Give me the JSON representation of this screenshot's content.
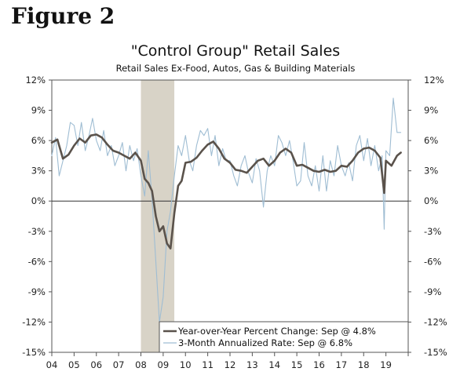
{
  "figure_label": "Figure 2",
  "chart_data": {
    "type": "line",
    "title": "\"Control Group\" Retail Sales",
    "subtitle": "Retail Sales Ex-Food, Autos, Gas & Building Materials",
    "ylim": [
      -15,
      12
    ],
    "y_ticks": [
      "12%",
      "9%",
      "6%",
      "3%",
      "0%",
      "-3%",
      "-6%",
      "-9%",
      "-12%",
      "-15%"
    ],
    "y_tick_values": [
      12,
      9,
      6,
      3,
      0,
      -3,
      -6,
      -9,
      -12,
      -15
    ],
    "xlim": [
      2004,
      2020
    ],
    "x_ticks": [
      "04",
      "05",
      "06",
      "07",
      "08",
      "09",
      "10",
      "11",
      "12",
      "13",
      "14",
      "15",
      "16",
      "17",
      "18",
      "19"
    ],
    "recession_shading": [
      2008.0,
      2009.5
    ],
    "legend_position": "bottom-right",
    "series": [
      {
        "name": "Year-over-Year Percent Change: Sep @ 4.8%",
        "color": "#5a524b",
        "style": "thick",
        "x": [
          2004.0,
          2004.25,
          2004.5,
          2004.75,
          2005.0,
          2005.25,
          2005.5,
          2005.75,
          2006.0,
          2006.25,
          2006.5,
          2006.75,
          2007.0,
          2007.25,
          2007.5,
          2007.75,
          2008.0,
          2008.17,
          2008.33,
          2008.5,
          2008.67,
          2008.83,
          2009.0,
          2009.17,
          2009.33,
          2009.5,
          2009.67,
          2009.83,
          2010.0,
          2010.25,
          2010.5,
          2010.75,
          2011.0,
          2011.25,
          2011.5,
          2011.75,
          2012.0,
          2012.25,
          2012.5,
          2012.75,
          2013.0,
          2013.25,
          2013.5,
          2013.75,
          2014.0,
          2014.25,
          2014.5,
          2014.75,
          2015.0,
          2015.25,
          2015.5,
          2015.75,
          2016.0,
          2016.25,
          2016.5,
          2016.75,
          2017.0,
          2017.25,
          2017.5,
          2017.75,
          2018.0,
          2018.25,
          2018.5,
          2018.75,
          2018.92,
          2019.0,
          2019.25,
          2019.5,
          2019.67
        ],
        "values": [
          5.8,
          6.1,
          4.2,
          4.6,
          5.5,
          6.2,
          5.8,
          6.5,
          6.6,
          6.3,
          5.6,
          5.0,
          4.8,
          4.5,
          4.2,
          4.8,
          4.0,
          2.2,
          1.8,
          1.0,
          -1.5,
          -3.0,
          -2.5,
          -4.2,
          -4.7,
          -1.2,
          1.5,
          2.0,
          3.8,
          3.9,
          4.3,
          5.0,
          5.6,
          5.9,
          5.2,
          4.2,
          3.8,
          3.1,
          3.0,
          2.8,
          3.4,
          4.0,
          4.2,
          3.5,
          4.0,
          4.8,
          5.2,
          4.8,
          3.5,
          3.6,
          3.3,
          3.0,
          2.9,
          3.1,
          2.9,
          3.0,
          3.5,
          3.4,
          4.0,
          4.8,
          5.2,
          5.3,
          5.0,
          4.3,
          0.8,
          4.0,
          3.5,
          4.5,
          4.8
        ]
      },
      {
        "name": "3-Month Annualized Rate: Sep @ 6.8%",
        "color": "#9fbdd3",
        "style": "thin",
        "x": [
          2004.0,
          2004.17,
          2004.33,
          2004.5,
          2004.67,
          2004.83,
          2005.0,
          2005.17,
          2005.33,
          2005.5,
          2005.67,
          2005.83,
          2006.0,
          2006.17,
          2006.33,
          2006.5,
          2006.67,
          2006.83,
          2007.0,
          2007.17,
          2007.33,
          2007.5,
          2007.67,
          2007.83,
          2008.0,
          2008.17,
          2008.33,
          2008.5,
          2008.67,
          2008.83,
          2009.0,
          2009.17,
          2009.33,
          2009.5,
          2009.67,
          2009.83,
          2010.0,
          2010.17,
          2010.33,
          2010.5,
          2010.67,
          2010.83,
          2011.0,
          2011.17,
          2011.33,
          2011.5,
          2011.67,
          2011.83,
          2012.0,
          2012.17,
          2012.33,
          2012.5,
          2012.67,
          2012.83,
          2013.0,
          2013.17,
          2013.33,
          2013.5,
          2013.67,
          2013.83,
          2014.0,
          2014.17,
          2014.33,
          2014.5,
          2014.67,
          2014.83,
          2015.0,
          2015.17,
          2015.33,
          2015.5,
          2015.67,
          2015.83,
          2016.0,
          2016.17,
          2016.33,
          2016.5,
          2016.67,
          2016.83,
          2017.0,
          2017.17,
          2017.33,
          2017.5,
          2017.67,
          2017.83,
          2018.0,
          2018.17,
          2018.33,
          2018.5,
          2018.67,
          2018.83,
          2018.92,
          2019.0,
          2019.17,
          2019.33,
          2019.5,
          2019.67
        ],
        "values": [
          4.5,
          6.3,
          2.5,
          4.0,
          5.5,
          7.8,
          7.5,
          5.5,
          7.8,
          5.0,
          6.5,
          8.2,
          6.0,
          5.0,
          7.0,
          4.5,
          5.5,
          3.5,
          4.5,
          5.8,
          3.0,
          5.5,
          4.0,
          5.2,
          2.5,
          0.5,
          5.0,
          0.2,
          -6.0,
          -12.0,
          -9.5,
          -3.0,
          -1.0,
          2.5,
          5.5,
          4.5,
          6.5,
          4.0,
          3.0,
          5.5,
          7.0,
          6.5,
          7.2,
          4.5,
          6.5,
          3.5,
          5.2,
          4.0,
          4.0,
          2.5,
          1.5,
          3.5,
          4.5,
          2.8,
          1.8,
          4.2,
          3.0,
          -0.6,
          3.0,
          4.5,
          3.5,
          6.5,
          5.8,
          4.5,
          6.0,
          4.0,
          1.5,
          2.0,
          5.8,
          2.5,
          1.5,
          3.5,
          1.0,
          4.5,
          1.0,
          4.0,
          2.5,
          5.5,
          3.5,
          2.5,
          3.8,
          2.0,
          5.5,
          6.5,
          4.0,
          6.2,
          3.5,
          5.5,
          3.0,
          4.5,
          -2.8,
          5.0,
          4.5,
          10.2,
          6.8,
          6.8
        ]
      }
    ]
  }
}
